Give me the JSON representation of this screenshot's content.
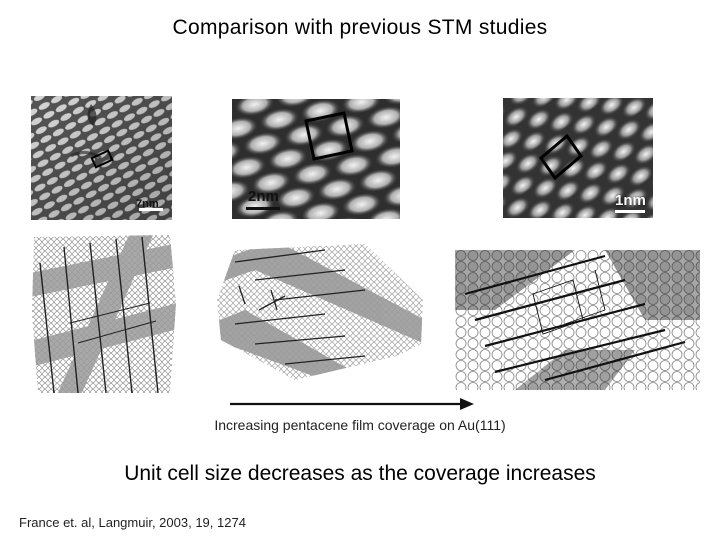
{
  "slide": {
    "title": "Comparison with previous STM studies",
    "stm_images": [
      {
        "scale_label": "7nm"
      },
      {
        "scale_label": "2nm"
      },
      {
        "scale_label": "1nm"
      }
    ],
    "arrow_caption": "Increasing pentacene film coverage on Au(111)",
    "conclusion": "Unit cell size decreases as the coverage increases",
    "citation": "France et. al, Langmuir, 2003, 19, 1274"
  },
  "colors": {
    "text": "#000000",
    "stripe_gray": "#9a9a9a",
    "arrow": "#111111"
  }
}
